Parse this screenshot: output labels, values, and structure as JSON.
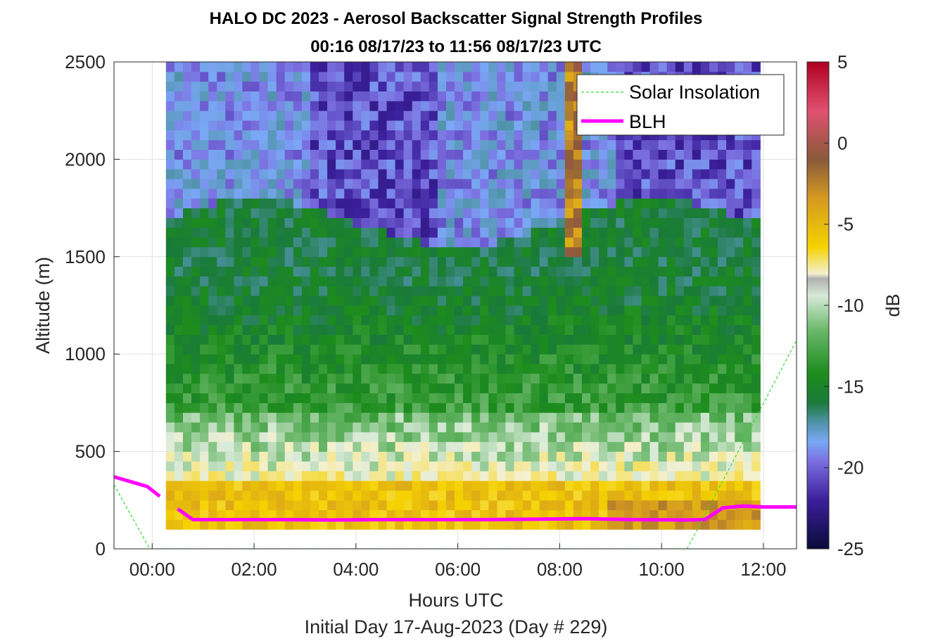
{
  "chart_data": {
    "type": "heatmap",
    "title": "HALO DC 2023 - Aerosol Backscatter Signal Strength Profiles",
    "subtitle": "00:16 08/17/23 to 11:56 08/17/23  UTC",
    "xlabel": "Hours UTC",
    "xlabel2": "Initial Day 17-Aug-2023 (Day # 229)",
    "ylabel": "Altitude (m)",
    "xlim_hours": [
      -0.75,
      12.65
    ],
    "ylim": [
      0,
      2500
    ],
    "xticks": [
      "00:00",
      "02:00",
      "04:00",
      "06:00",
      "08:00",
      "10:00",
      "12:00"
    ],
    "xtick_values": [
      0,
      2,
      4,
      6,
      8,
      10,
      12
    ],
    "yticks": [
      "0",
      "500",
      "1000",
      "1500",
      "2000",
      "2500"
    ],
    "ytick_values": [
      0,
      500,
      1000,
      1500,
      2000,
      2500
    ],
    "grid": true,
    "colorbar": {
      "label": "dB",
      "range": [
        -25,
        5
      ],
      "ticks": [
        "5",
        "0",
        "-5",
        "-10",
        "-15",
        "-20",
        "-25"
      ],
      "tick_values": [
        5,
        0,
        -5,
        -10,
        -15,
        -20,
        -25
      ]
    },
    "legend": {
      "placement": "top-right",
      "entries": [
        "Solar Insolation",
        "BLH"
      ]
    },
    "series": [
      {
        "name": "BLH",
        "color": "#ff00ff",
        "segments": [
          {
            "x": [
              -0.75,
              -0.1,
              0.15
            ],
            "y": [
              370,
              320,
              270
            ]
          },
          {
            "x": [
              0.5,
              0.8,
              1.5,
              2.5,
              3.5,
              4.5,
              5.5,
              6.5,
              7.5,
              8.5,
              9.5,
              10.5,
              10.85,
              11.2,
              11.6,
              12,
              12.65
            ],
            "y": [
              205,
              150,
              150,
              150,
              148,
              150,
              150,
              150,
              152,
              155,
              150,
              148,
              150,
              210,
              220,
              215,
              215
            ]
          }
        ]
      },
      {
        "name": "Solar Insolation",
        "color": "#33dd33",
        "segments": [
          {
            "x": [
              -0.75,
              -0.05,
              10.5,
              12.65
            ],
            "y": [
              330,
              0,
              0,
              1070
            ]
          }
        ]
      }
    ],
    "heatmap_summary": {
      "x_range_hours": [
        0.27,
        11.93
      ],
      "y_range_m": [
        100,
        2500
      ],
      "description_layers": [
        {
          "y": [
            100,
            350
          ],
          "db": -7
        },
        {
          "y": [
            350,
            700
          ],
          "db": -11
        },
        {
          "y": [
            700,
            1700
          ],
          "db": -16
        },
        {
          "y": [
            1700,
            2500
          ],
          "db": -20
        }
      ]
    }
  }
}
